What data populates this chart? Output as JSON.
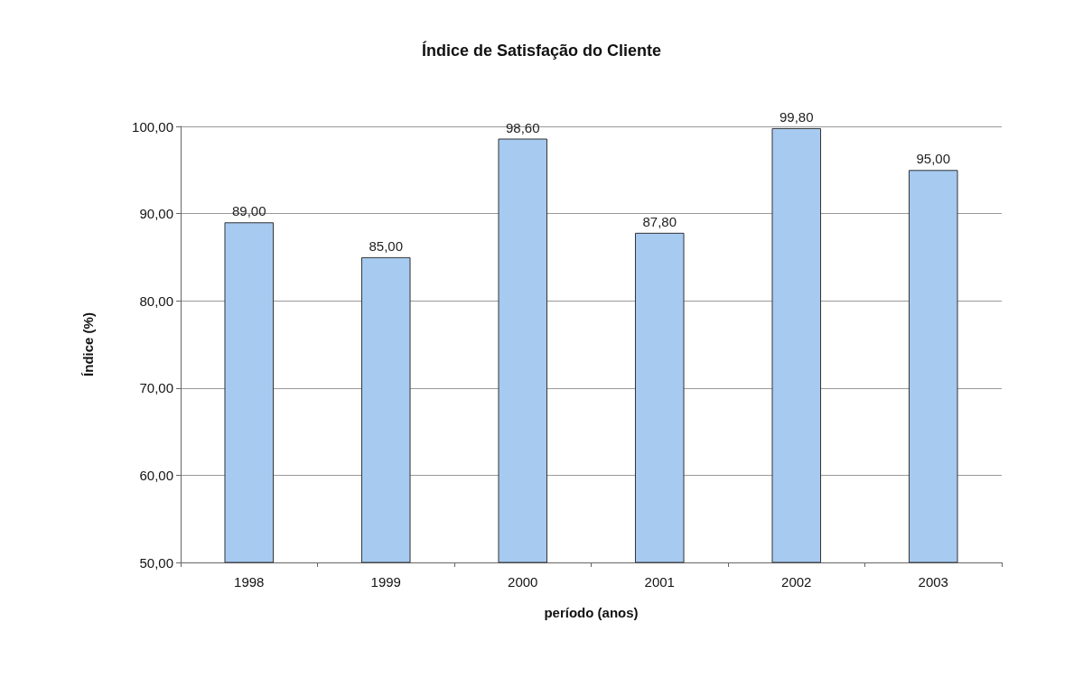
{
  "chart_data": {
    "type": "bar",
    "title": "Índice de Satisfação do Cliente",
    "xlabel": "período (anos)",
    "ylabel": "Índice (%)",
    "categories": [
      "1998",
      "1999",
      "2000",
      "2001",
      "2002",
      "2003"
    ],
    "values": [
      89.0,
      85.0,
      98.6,
      87.8,
      99.8,
      95.0
    ],
    "value_labels": [
      "89,00",
      "85,00",
      "98,60",
      "87,80",
      "99,80",
      "95,00"
    ],
    "color": "#a6caf0",
    "ylim": [
      50,
      100
    ],
    "yticks": [
      {
        "value": 50,
        "label": "50,00"
      },
      {
        "value": 60,
        "label": "60,00"
      },
      {
        "value": 70,
        "label": "70,00"
      },
      {
        "value": 80,
        "label": "80,00"
      },
      {
        "value": 90,
        "label": "90,00"
      },
      {
        "value": 100,
        "label": "100,00"
      }
    ],
    "grid": "y"
  }
}
